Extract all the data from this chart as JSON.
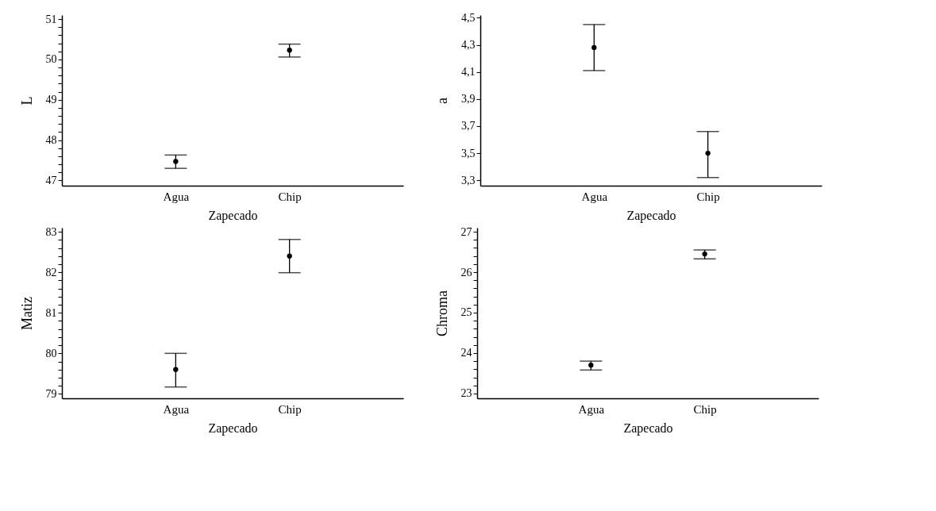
{
  "chart_data": [
    {
      "type": "scatter",
      "categories": [
        "Agua",
        "Chip"
      ],
      "values": [
        47.47,
        50.23
      ],
      "errors": [
        [
          47.3,
          47.63
        ],
        [
          50.06,
          50.38
        ]
      ],
      "xlabel": "Zapecado",
      "ylabel": "L",
      "color": "#000000",
      "marker": "circle",
      "ylim": [
        46.87,
        51.1
      ],
      "yticks": [
        {
          "value": 47,
          "label": "47"
        },
        {
          "value": 47.2,
          "label": null
        },
        {
          "value": 47.4,
          "label": null
        },
        {
          "value": 47.6,
          "label": null
        },
        {
          "value": 47.8,
          "label": null
        },
        {
          "value": 48,
          "label": "48"
        },
        {
          "value": 48.2,
          "label": null
        },
        {
          "value": 48.4,
          "label": null
        },
        {
          "value": 48.6,
          "label": null
        },
        {
          "value": 48.8,
          "label": null
        },
        {
          "value": 49,
          "label": "49"
        },
        {
          "value": 49.2,
          "label": null
        },
        {
          "value": 49.4,
          "label": null
        },
        {
          "value": 49.6,
          "label": null
        },
        {
          "value": 49.8,
          "label": null
        },
        {
          "value": 50,
          "label": "50"
        },
        {
          "value": 50.2,
          "label": null
        },
        {
          "value": 50.4,
          "label": null
        },
        {
          "value": 50.6,
          "label": null
        },
        {
          "value": 50.8,
          "label": null
        },
        {
          "value": 51,
          "label": "51"
        }
      ]
    },
    {
      "type": "scatter",
      "categories": [
        "Agua",
        "Chip"
      ],
      "values": [
        4.28,
        3.5
      ],
      "errors": [
        [
          4.11,
          4.45
        ],
        [
          3.32,
          3.66
        ]
      ],
      "xlabel": "Zapecado",
      "ylabel": "a",
      "color": "#000000",
      "marker": "circle",
      "ylim": [
        3.26,
        4.52
      ],
      "yticks": [
        {
          "value": 3.3,
          "label": "3,3"
        },
        {
          "value": 3.5,
          "label": "3,5"
        },
        {
          "value": 3.7,
          "label": "3,7"
        },
        {
          "value": 3.9,
          "label": "3,9"
        },
        {
          "value": 4.1,
          "label": "4,1"
        },
        {
          "value": 4.3,
          "label": "4,3"
        },
        {
          "value": 4.5,
          "label": "4,5"
        }
      ]
    },
    {
      "type": "scatter",
      "categories": [
        "Agua",
        "Chip"
      ],
      "values": [
        79.6,
        82.4
      ],
      "errors": [
        [
          79.17,
          80.0
        ],
        [
          81.99,
          82.81
        ]
      ],
      "xlabel": "Zapecado",
      "ylabel": "Matiz",
      "color": "#000000",
      "marker": "circle",
      "ylim": [
        78.89,
        83.1
      ],
      "yticks": [
        {
          "value": 79,
          "label": "79"
        },
        {
          "value": 79.2,
          "label": null
        },
        {
          "value": 79.4,
          "label": null
        },
        {
          "value": 79.6,
          "label": null
        },
        {
          "value": 79.8,
          "label": null
        },
        {
          "value": 80,
          "label": "80"
        },
        {
          "value": 80.2,
          "label": null
        },
        {
          "value": 80.4,
          "label": null
        },
        {
          "value": 80.6,
          "label": null
        },
        {
          "value": 80.8,
          "label": null
        },
        {
          "value": 81,
          "label": "81"
        },
        {
          "value": 81.2,
          "label": null
        },
        {
          "value": 81.4,
          "label": null
        },
        {
          "value": 81.6,
          "label": null
        },
        {
          "value": 81.8,
          "label": null
        },
        {
          "value": 82,
          "label": "82"
        },
        {
          "value": 82.2,
          "label": null
        },
        {
          "value": 82.4,
          "label": null
        },
        {
          "value": 82.6,
          "label": null
        },
        {
          "value": 82.8,
          "label": null
        },
        {
          "value": 83,
          "label": "83"
        }
      ]
    },
    {
      "type": "scatter",
      "categories": [
        "Agua",
        "Chip"
      ],
      "values": [
        23.7,
        26.45
      ],
      "errors": [
        [
          23.58,
          23.8
        ],
        [
          26.33,
          26.55
        ]
      ],
      "xlabel": "Zapecado",
      "ylabel": "Chroma",
      "color": "#000000",
      "marker": "circle",
      "ylim": [
        22.88,
        27.1
      ],
      "yticks": [
        {
          "value": 23,
          "label": "23"
        },
        {
          "value": 23.2,
          "label": null
        },
        {
          "value": 23.4,
          "label": null
        },
        {
          "value": 23.6,
          "label": null
        },
        {
          "value": 23.8,
          "label": null
        },
        {
          "value": 24,
          "label": "24"
        },
        {
          "value": 24.2,
          "label": null
        },
        {
          "value": 24.4,
          "label": null
        },
        {
          "value": 24.6,
          "label": null
        },
        {
          "value": 24.8,
          "label": null
        },
        {
          "value": 25,
          "label": "25"
        },
        {
          "value": 25.2,
          "label": null
        },
        {
          "value": 25.4,
          "label": null
        },
        {
          "value": 25.6,
          "label": null
        },
        {
          "value": 25.8,
          "label": null
        },
        {
          "value": 26,
          "label": "26"
        },
        {
          "value": 26.2,
          "label": null
        },
        {
          "value": 26.4,
          "label": null
        },
        {
          "value": 26.6,
          "label": null
        },
        {
          "value": 26.8,
          "label": null
        },
        {
          "value": 27,
          "label": "27"
        }
      ]
    }
  ]
}
